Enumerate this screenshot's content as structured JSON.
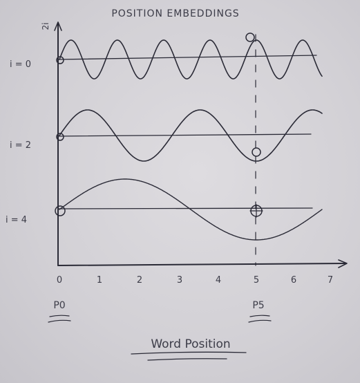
{
  "title": "POSITION EMBEDDINGS",
  "y_axis_label": "2i",
  "row_labels": [
    "i = 0",
    "i = 2",
    "i = 4"
  ],
  "x_tick_labels": [
    "0",
    "1",
    "2",
    "3",
    "4",
    "5",
    "6",
    "7"
  ],
  "markers": {
    "start": "P0",
    "end": "P5"
  },
  "x_axis_label": "Word Position",
  "waves": [
    {
      "row": "i = 0",
      "cycles_between_0_and_5": 4.25
    },
    {
      "row": "i = 2",
      "cycles_between_0_and_5": 1.75
    },
    {
      "row": "i = 4",
      "cycles_between_0_and_5": 0.75
    }
  ],
  "colors": {
    "ink": "#2a2a36",
    "paper": "#d4d2d6"
  }
}
